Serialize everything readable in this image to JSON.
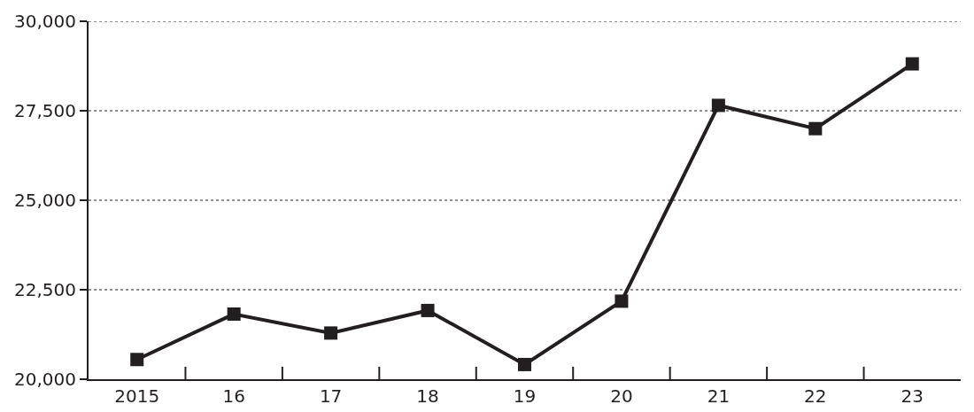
{
  "chart_data": {
    "type": "line",
    "categories": [
      "2015",
      "16",
      "17",
      "18",
      "19",
      "20",
      "21",
      "22",
      "23"
    ],
    "series": [
      {
        "color": "#231f20",
        "values": [
          20550,
          21820,
          21290,
          21920,
          20410,
          22180,
          27650,
          27000,
          28810
        ]
      }
    ],
    "ylim": [
      20000,
      30000
    ],
    "yticks": [
      {
        "value": 20000,
        "label": "20,000"
      },
      {
        "value": 22500,
        "label": "22,500"
      },
      {
        "value": 25000,
        "label": "25,000"
      },
      {
        "value": 27500,
        "label": "27,500"
      },
      {
        "value": 30000,
        "label": "30,000"
      }
    ],
    "grid": "y",
    "marker": "square",
    "line_style": "solid"
  }
}
